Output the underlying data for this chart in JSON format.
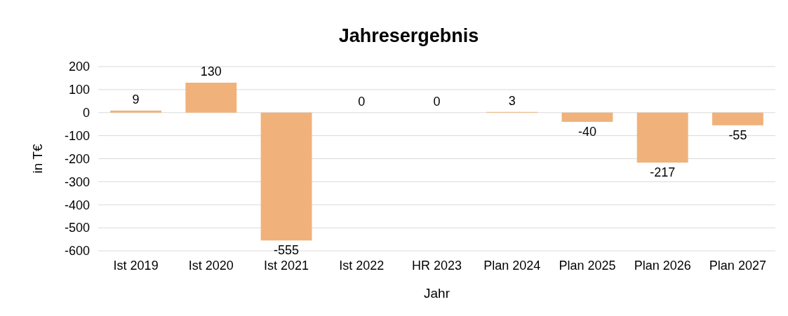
{
  "chart_data": {
    "type": "bar",
    "title": "Jahresergebnis",
    "xlabel": "Jahr",
    "ylabel": "in T€",
    "categories": [
      "Ist 2019",
      "Ist 2020",
      "Ist 2021",
      "Ist 2022",
      "HR 2023",
      "Plan 2024",
      "Plan 2025",
      "Plan 2026",
      "Plan 2027"
    ],
    "values": [
      9,
      130,
      -555,
      0,
      0,
      3,
      -40,
      -217,
      -55
    ],
    "color": "#f0b27a",
    "ylim": [
      -600,
      200
    ],
    "yticks": [
      -600,
      -500,
      -400,
      -300,
      -200,
      -100,
      0,
      100,
      200
    ],
    "grid": "y",
    "data_labels": true
  }
}
